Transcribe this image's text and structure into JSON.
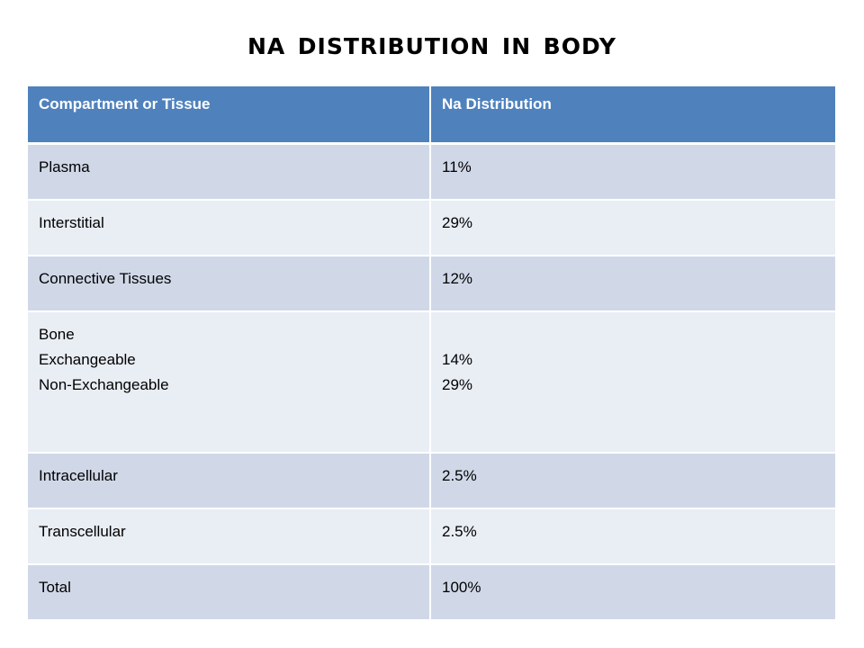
{
  "title": "Na Distribution in Body",
  "table": {
    "headers": [
      "Compartment or Tissue",
      "Na Distribution"
    ],
    "rows": [
      {
        "compartment": [
          "Plasma"
        ],
        "distribution": [
          "11%"
        ]
      },
      {
        "compartment": [
          "Interstitial"
        ],
        "distribution": [
          "29%"
        ]
      },
      {
        "compartment": [
          "Connective Tissues"
        ],
        "distribution": [
          "12%"
        ]
      },
      {
        "compartment": [
          "Bone",
          "Exchangeable",
          "Non-Exchangeable"
        ],
        "distribution": [
          "",
          "14%",
          "29%"
        ]
      },
      {
        "compartment": [
          "Intracellular"
        ],
        "distribution": [
          "2.5%"
        ]
      },
      {
        "compartment": [
          "Transcellular"
        ],
        "distribution": [
          "2.5%"
        ]
      },
      {
        "compartment": [
          "Total"
        ],
        "distribution": [
          "100%"
        ]
      }
    ]
  },
  "colors": {
    "header_bg": "#4f81bd",
    "row_dark": "#d0d8e8",
    "row_light": "#e9edf4"
  }
}
